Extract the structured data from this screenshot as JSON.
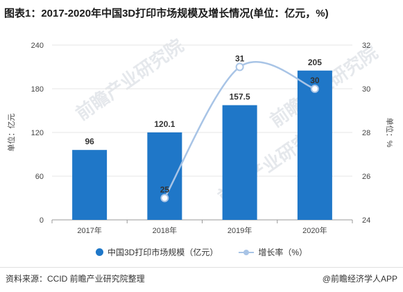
{
  "title": "图表1：2017-2020年中国3D打印市场规模及增长情况(单位：亿元，%)",
  "watermark": [
    "前瞻产业研究院",
    "前瞻产业研究院",
    "前瞻产业研究院"
  ],
  "legend": {
    "bar_label": "中国3D打印市场规模（亿元）",
    "line_label": "增长率（%）"
  },
  "footer": {
    "source": "资料来源：CCID 前瞻产业研究院整理",
    "brand": "@前瞻经济学人APP"
  },
  "colors": {
    "bar": "#1f77c8",
    "line": "#a8c4e6",
    "grid": "#e6e6e6"
  },
  "chart_data": {
    "type": "bar",
    "categories": [
      "2017年",
      "2018年",
      "2019年",
      "2020年"
    ],
    "series": [
      {
        "name": "中国3D打印市场规模（亿元）",
        "type": "bar",
        "axis": "left",
        "values": [
          96,
          120.1,
          157.5,
          205
        ]
      },
      {
        "name": "增长率（%）",
        "type": "line",
        "axis": "right",
        "values": [
          null,
          25,
          31,
          30
        ]
      }
    ],
    "ylabel_left": "单位：亿元",
    "ylabel_right": "单位：%",
    "ylim_left": [
      0,
      240
    ],
    "yticks_left": [
      "0",
      "60",
      "120",
      "180",
      "240"
    ],
    "ylim_right": [
      24,
      32
    ],
    "yticks_right": [
      "24",
      "26",
      "28",
      "30",
      "32"
    ],
    "bar_labels": [
      "96",
      "120.1",
      "157.5",
      "205"
    ],
    "line_labels": [
      "",
      "25",
      "31",
      "30"
    ],
    "grid": true,
    "legend_position": "bottom"
  }
}
